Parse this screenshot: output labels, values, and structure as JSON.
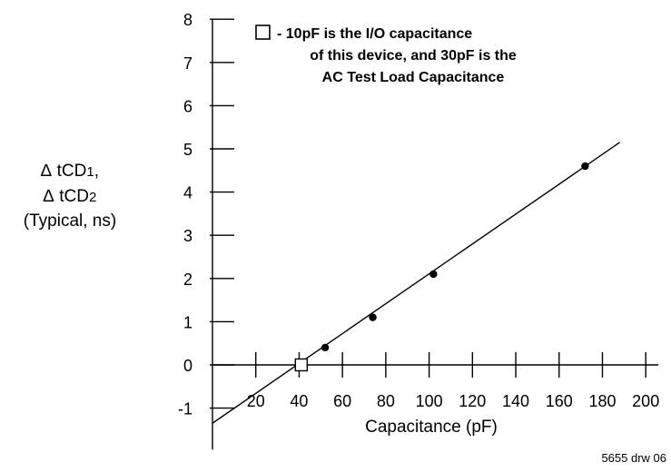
{
  "chart_data": {
    "type": "scatter",
    "xlabel": "Capacitance (pF)",
    "ylabel_lines": [
      "tCD1,",
      "tCD2",
      "(Typical, ns)"
    ],
    "ylabel_delta": "∆",
    "ylabel_subscripts": [
      "1",
      "2"
    ],
    "xlim": [
      0,
      205
    ],
    "ylim": [
      -1.5,
      8
    ],
    "x_ticks": [
      20,
      40,
      60,
      80,
      100,
      120,
      140,
      160,
      180,
      200
    ],
    "y_ticks": [
      8,
      7,
      6,
      5,
      4,
      3,
      2,
      1,
      0,
      -1
    ],
    "grid": false,
    "series": [
      {
        "points": [
          {
            "x": 52,
            "y": 0.4
          },
          {
            "x": 74,
            "y": 1.1
          },
          {
            "x": 102,
            "y": 2.1
          },
          {
            "x": 172,
            "y": 4.6
          }
        ],
        "marker": "filled-circle"
      }
    ],
    "reference_point": {
      "x": 41,
      "y": 0,
      "marker": "open-square"
    },
    "fit_line": {
      "from": {
        "x": 0,
        "y": -1.35
      },
      "to": {
        "x": 188,
        "y": 5.15
      }
    },
    "annotation": {
      "marker": "open-square",
      "lines": [
        "- 10pF is the I/O capacitance",
        "of this device, and 30pF is the",
        "AC Test Load Capacitance"
      ]
    },
    "credit": "5655 drw 06"
  }
}
